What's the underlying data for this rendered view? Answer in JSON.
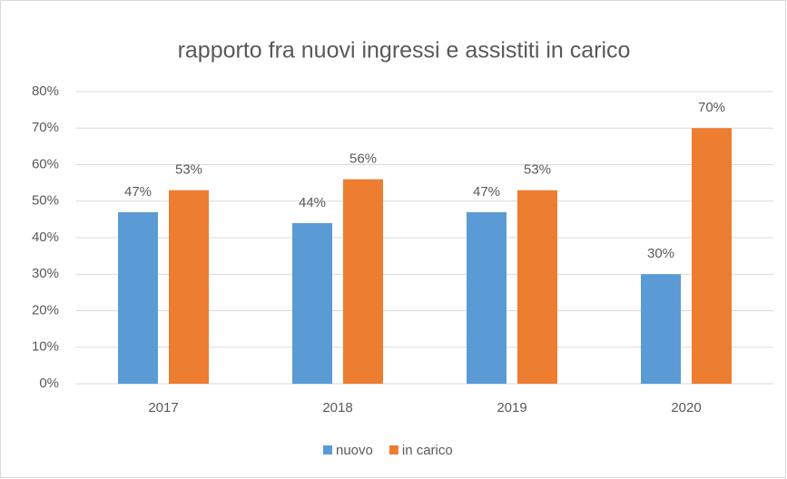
{
  "chart_data": {
    "type": "bar",
    "title": "rapporto fra nuovi ingressi e assistiti in carico",
    "categories": [
      "2017",
      "2018",
      "2019",
      "2020"
    ],
    "series": [
      {
        "name": "nuovo",
        "color": "#5b9bd5",
        "values": [
          47,
          44,
          47,
          30
        ],
        "value_labels": [
          "47%",
          "44%",
          "47%",
          "30%"
        ]
      },
      {
        "name": "in carico",
        "color": "#ed7d31",
        "values": [
          53,
          56,
          53,
          70
        ],
        "value_labels": [
          "53%",
          "56%",
          "53%",
          "70%"
        ]
      }
    ],
    "ylim": [
      0,
      80
    ],
    "yticks": [
      {
        "value": 0,
        "label": "0%"
      },
      {
        "value": 10,
        "label": "10%"
      },
      {
        "value": 20,
        "label": "20%"
      },
      {
        "value": 30,
        "label": "30%"
      },
      {
        "value": 40,
        "label": "40%"
      },
      {
        "value": 50,
        "label": "50%"
      },
      {
        "value": 60,
        "label": "60%"
      },
      {
        "value": 70,
        "label": "70%"
      },
      {
        "value": 80,
        "label": "80%"
      }
    ],
    "grid": true,
    "legend": "bottom"
  }
}
